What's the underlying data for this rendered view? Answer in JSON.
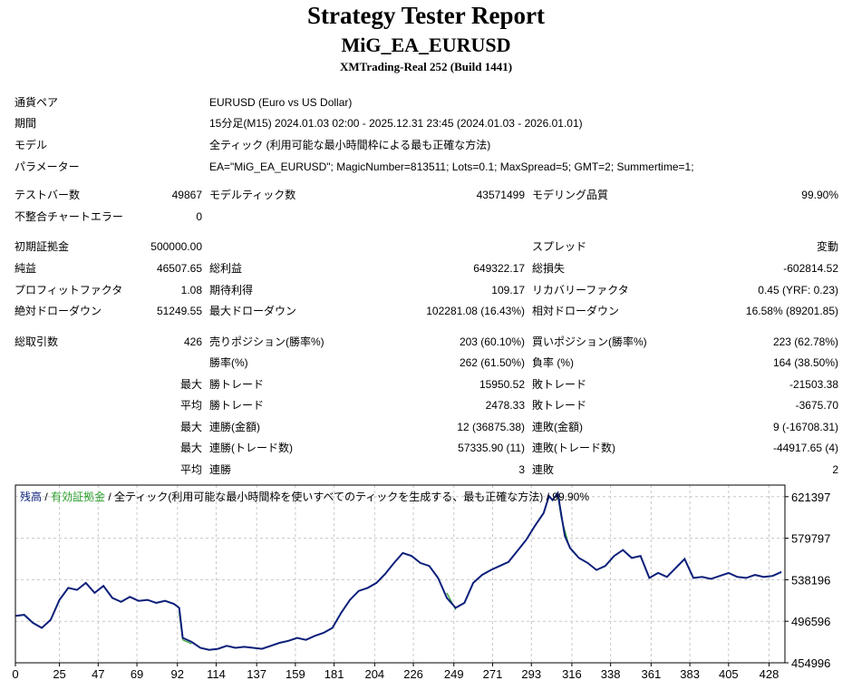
{
  "header": {
    "title": "Strategy Tester Report",
    "subtitle": "MiG_EA_EURUSD",
    "server": "XMTrading-Real 252 (Build 1441)"
  },
  "info": [
    {
      "label": "通貨ペア",
      "value": "EURUSD (Euro vs US Dollar)"
    },
    {
      "label": "期間",
      "value": "15分足(M15) 2024.01.03 02:00 - 2025.12.31 23:45 (2024.01.03 - 2026.01.01)"
    },
    {
      "label": "モデル",
      "value": "全ティック (利用可能な最小時間枠による最も正確な方法)"
    },
    {
      "label": "パラメーター",
      "value": "EA=\"MiG_EA_EURUSD\"; MagicNumber=813511; Lots=0.1; MaxSpread=5; GMT=2; Summertime=1;"
    }
  ],
  "stats": {
    "test_bars_label": "テストバー数",
    "test_bars": "49867",
    "model_ticks_label": "モデルティック数",
    "model_ticks": "43571499",
    "model_quality_label": "モデリング品質",
    "model_quality": "99.90%",
    "mismatch_label": "不整合チャートエラー",
    "mismatch": "0",
    "initial_deposit_label": "初期証拠金",
    "initial_deposit": "500000.00",
    "spread_label": "スプレッド",
    "spread": "変動",
    "net_profit_label": "純益",
    "net_profit": "46507.65",
    "gross_profit_label": "総利益",
    "gross_profit": "649322.17",
    "gross_loss_label": "総損失",
    "gross_loss": "-602814.52",
    "profit_factor_label": "プロフィットファクタ",
    "profit_factor": "1.08",
    "expected_payoff_label": "期待利得",
    "expected_payoff": "109.17",
    "recovery_factor_label": "リカバリーファクタ",
    "recovery_factor": "0.45 (YRF: 0.23)",
    "abs_dd_label": "絶対ドローダウン",
    "abs_dd": "51249.55",
    "max_dd_label": "最大ドローダウン",
    "max_dd": "102281.08 (16.43%)",
    "rel_dd_label": "相対ドローダウン",
    "rel_dd": "16.58% (89201.85)",
    "total_trades_label": "総取引数",
    "total_trades": "426",
    "short_label": "売りポジション(勝率%)",
    "short": "203 (60.10%)",
    "long_label": "買いポジション(勝率%)",
    "long": "223 (62.78%)",
    "win_rate_label": "勝率(%)",
    "win_rate": "262 (61.50%)",
    "loss_rate_label": "負率 (%)",
    "loss_rate": "164 (38.50%)",
    "max_word": "最大",
    "avg_word": "平均",
    "largest_win_label": "勝トレード",
    "largest_win": "15950.52",
    "largest_loss_label": "敗トレード",
    "largest_loss": "-21503.38",
    "avg_win_label": "勝トレード",
    "avg_win": "2478.33",
    "avg_loss_label": "敗トレード",
    "avg_loss": "-3675.70",
    "max_consec_wins_label": "連勝(金額)",
    "max_consec_wins": "12 (36875.38)",
    "max_consec_losses_label": "連敗(金額)",
    "max_consec_losses": "9 (-16708.31)",
    "max_consec_profit_label": "連勝(トレード数)",
    "max_consec_profit": "57335.90 (11)",
    "max_consec_loss_label": "連敗(トレード数)",
    "max_consec_loss": "-44917.65 (4)",
    "avg_consec_wins_label": "連勝",
    "avg_consec_wins": "3",
    "avg_consec_losses_label": "連敗",
    "avg_consec_losses": "2"
  },
  "chart_data": {
    "type": "line",
    "legend": {
      "balance": "残高",
      "sep1": " / ",
      "equity": "有効証拠金",
      "rest": " / 全ティック(利用可能な最小時間枠を使いすべてのティックを生成する、最も正確な方法) / 99.90%"
    },
    "colors": {
      "balance": "#0b1f7a",
      "equity": "#2e9e2e",
      "grid": "#c8c8c8",
      "axis": "#000000"
    },
    "xlim": [
      0,
      437
    ],
    "ylim": [
      454996,
      633000
    ],
    "x_ticks": [
      "0",
      "25",
      "47",
      "69",
      "92",
      "114",
      "137",
      "159",
      "181",
      "204",
      "226",
      "249",
      "271",
      "293",
      "316",
      "338",
      "361",
      "383",
      "405",
      "428"
    ],
    "x_tick_values": [
      0,
      25,
      47,
      69,
      92,
      114,
      137,
      159,
      181,
      204,
      226,
      249,
      271,
      293,
      316,
      338,
      361,
      383,
      405,
      428
    ],
    "y_ticks": [
      "621397",
      "579797",
      "538196",
      "496596",
      "454996"
    ],
    "y_tick_values": [
      621397,
      579797,
      538196,
      496596,
      454996
    ],
    "grid": true,
    "series": [
      {
        "key": "balance",
        "x": [
          0,
          5,
          10,
          15,
          20,
          25,
          30,
          35,
          40,
          45,
          50,
          55,
          60,
          65,
          70,
          75,
          80,
          85,
          90,
          93,
          95,
          100,
          105,
          110,
          115,
          120,
          125,
          130,
          135,
          140,
          145,
          150,
          155,
          160,
          165,
          170,
          175,
          180,
          185,
          190,
          195,
          200,
          205,
          210,
          215,
          220,
          225,
          230,
          235,
          240,
          245,
          250,
          255,
          260,
          265,
          270,
          275,
          280,
          285,
          290,
          295,
          300,
          303,
          305,
          308,
          310,
          312,
          315,
          320,
          325,
          330,
          335,
          340,
          345,
          350,
          355,
          360,
          365,
          370,
          375,
          380,
          385,
          390,
          395,
          400,
          405,
          410,
          415,
          420,
          425,
          430,
          435
        ],
        "y": [
          502000,
          503000,
          495000,
          490000,
          498000,
          518000,
          530000,
          528000,
          535000,
          525000,
          532000,
          520000,
          516000,
          521000,
          517000,
          518000,
          515000,
          517000,
          514000,
          510000,
          480000,
          476000,
          470000,
          468000,
          469000,
          472000,
          470000,
          471000,
          470000,
          469000,
          472000,
          475000,
          477000,
          480000,
          478000,
          482000,
          485000,
          490000,
          505000,
          518000,
          527000,
          530000,
          535000,
          544000,
          555000,
          565000,
          562000,
          555000,
          552000,
          540000,
          520000,
          510000,
          515000,
          535000,
          543000,
          548000,
          552000,
          556000,
          567000,
          578000,
          592000,
          605000,
          622000,
          618000,
          625000,
          603000,
          582000,
          570000,
          560000,
          555000,
          548000,
          552000,
          562000,
          568000,
          560000,
          562000,
          540000,
          545000,
          541000,
          550000,
          559000,
          540000,
          541000,
          539000,
          542000,
          545000,
          541000,
          540000,
          543000,
          541000,
          542000,
          546000
        ]
      },
      {
        "key": "equity",
        "x": [
          93,
          95,
          100,
          245,
          248,
          250,
          308,
          310,
          314,
          335,
          370,
          400
        ],
        "y": [
          505000,
          478000,
          474000,
          525000,
          515000,
          508000,
          622000,
          600000,
          575000,
          547000,
          537000,
          540000
        ]
      }
    ]
  }
}
